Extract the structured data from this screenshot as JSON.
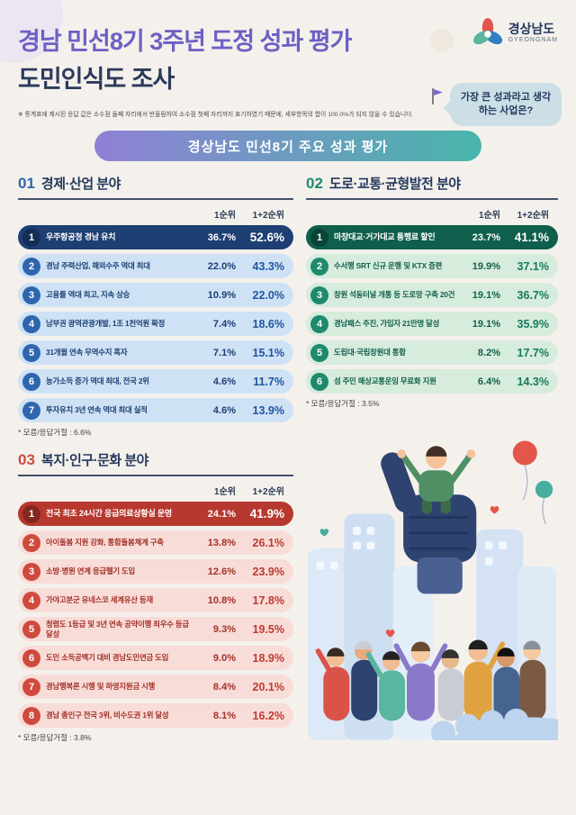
{
  "header": {
    "title_line1": "경남 민선8기 3주년 도정 성과 평가",
    "title_line2": "도민인식도 조사",
    "logo_text": "경상남도",
    "logo_sub": "GYEONGNAM",
    "note": "※ 통계표에 제시된 응답 값은 소수점 둘째 자리에서 반올림하여 소수점 첫째 자리까지 표기하였기 때문에, 세부항목의 합이 100.0%가 되지 않을 수 있습니다.",
    "bubble": "가장 큰 성과라고 생각하는 사업은?"
  },
  "banner": "경상남도 민선8기 주요 성과 평가",
  "colors": {
    "title_purple": "#6e5fc4",
    "navy": "#2c3a5c",
    "economy_blue": "#2e66ae",
    "transport_green": "#1f8a6e",
    "welfare_red": "#cf4a3e",
    "banner_gradient": [
      "#8f80d6",
      "#49b6aa"
    ]
  },
  "icons": {
    "logo-flower-icon": "three-petal flower mark",
    "flag-icon": "purple pennant flag",
    "balloon-icon": "red and teal balloons",
    "thumbs-up-icon": "navy thumbs-up hand",
    "heart-icon": "small red heart",
    "open-hand-icon": "light blue open palm",
    "city-skyline": "pale blue buildings"
  },
  "chart_data": [
    {
      "type": "table",
      "section_no": "01",
      "title": "경제·산업 분야",
      "value_columns": [
        "1순위",
        "1+2순위"
      ],
      "footnote": "* 모름/응답거절 : 6.6%",
      "rows": [
        {
          "rank": 1,
          "label": "우주항공청 경남 유치",
          "first": 36.7,
          "first_plus_second": 52.6
        },
        {
          "rank": 2,
          "label": "경남 주력산업, 해외수주 역대 최대",
          "first": 22.0,
          "first_plus_second": 43.3
        },
        {
          "rank": 3,
          "label": "고용률 역대 최고, 지속 상승",
          "first": 10.9,
          "first_plus_second": 22.0
        },
        {
          "rank": 4,
          "label": "남부권 광역관광개발, 1조 1천억원 확정",
          "first": 7.4,
          "first_plus_second": 18.6
        },
        {
          "rank": 5,
          "label": "31개월 연속 무역수지 흑자",
          "first": 7.1,
          "first_plus_second": 15.1
        },
        {
          "rank": 6,
          "label": "농가소득 증가 역대 최대, 전국 2위",
          "first": 4.6,
          "first_plus_second": 11.7
        },
        {
          "rank": 7,
          "label": "투자유치 3년 연속 역대 최대 실적",
          "first": 4.6,
          "first_plus_second": 13.9
        }
      ]
    },
    {
      "type": "table",
      "section_no": "02",
      "title": "도로·교통·균형발전 분야",
      "value_columns": [
        "1순위",
        "1+2순위"
      ],
      "footnote": "* 모름/응답거절 : 3.5%",
      "rows": [
        {
          "rank": 1,
          "label": "마창대교·거가대교 통행료 할인",
          "first": 23.7,
          "first_plus_second": 41.1
        },
        {
          "rank": 2,
          "label": "수서행 SRT 신규 운행 및 KTX 증편",
          "first": 19.9,
          "first_plus_second": 37.1
        },
        {
          "rank": 3,
          "label": "창원 석동터널 개통 등 도로망 구축 20건",
          "first": 19.1,
          "first_plus_second": 36.7
        },
        {
          "rank": 4,
          "label": "경남패스 추진, 가입자 21만명 달성",
          "first": 19.1,
          "first_plus_second": 35.9
        },
        {
          "rank": 5,
          "label": "도립대·국립창원대 통합",
          "first": 8.2,
          "first_plus_second": 17.7
        },
        {
          "rank": 6,
          "label": "섬 주민 해상교통운임 무료화 지원",
          "first": 6.4,
          "first_plus_second": 14.3
        }
      ]
    },
    {
      "type": "table",
      "section_no": "03",
      "title": "복지·인구·문화 분야",
      "value_columns": [
        "1순위",
        "1+2순위"
      ],
      "footnote": "* 모름/응답거절 : 3.8%",
      "rows": [
        {
          "rank": 1,
          "label": "전국 최초 24시간 응급의료상황실 운영",
          "first": 24.1,
          "first_plus_second": 41.9
        },
        {
          "rank": 2,
          "label": "아이돌봄 지원 강화, 통합돌봄체계 구축",
          "first": 13.8,
          "first_plus_second": 26.1
        },
        {
          "rank": 3,
          "label": "소방·병원 연계 응급헬기 도입",
          "first": 12.6,
          "first_plus_second": 23.9
        },
        {
          "rank": 4,
          "label": "가야고분군 유네스코 세계유산 등재",
          "first": 10.8,
          "first_plus_second": 17.8
        },
        {
          "rank": 5,
          "label": "청렴도 1등급 및 3년 연속 공약이행 최우수 등급 달성",
          "first": 9.3,
          "first_plus_second": 19.5
        },
        {
          "rank": 6,
          "label": "도민 소득공백기 대비 경남도민연금 도입",
          "first": 9.0,
          "first_plus_second": 18.9
        },
        {
          "rank": 7,
          "label": "경남행복론 시행 및 하영지원금 시행",
          "first": 8.4,
          "first_plus_second": 20.1
        },
        {
          "rank": 8,
          "label": "경남 총인구 전국 3위, 비수도권 1위 달성",
          "first": 8.1,
          "first_plus_second": 16.2
        }
      ]
    }
  ]
}
